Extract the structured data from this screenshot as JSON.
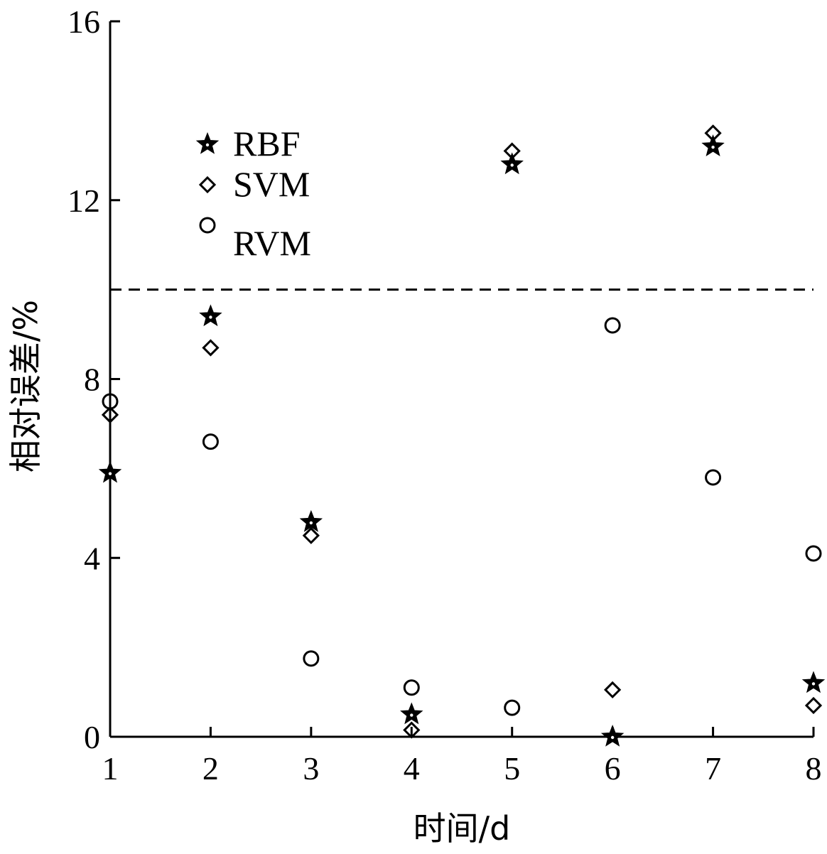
{
  "chart_data": {
    "type": "scatter",
    "title": "",
    "xlabel": "时间/d",
    "ylabel": "相对误差/%",
    "x": [
      1,
      2,
      3,
      4,
      5,
      6,
      7,
      8
    ],
    "xticks": [
      "1",
      "2",
      "3",
      "4",
      "5",
      "6",
      "7",
      "8"
    ],
    "yticks": [
      "0",
      "4",
      "8",
      "12",
      "16"
    ],
    "xlim": [
      1,
      8
    ],
    "ylim": [
      0,
      16
    ],
    "grid": false,
    "legend_position": "top-left",
    "reference_line": {
      "y": 10,
      "style": "dashed"
    },
    "series": [
      {
        "name": "RBF",
        "marker": "star",
        "values": [
          5.9,
          9.4,
          4.8,
          0.5,
          12.8,
          0.0,
          13.2,
          1.2
        ]
      },
      {
        "name": "SVM",
        "marker": "diamond",
        "values": [
          7.2,
          8.7,
          4.5,
          0.15,
          13.1,
          1.05,
          13.5,
          0.7
        ]
      },
      {
        "name": "RVM",
        "marker": "circle",
        "values": [
          7.5,
          6.6,
          1.75,
          1.1,
          0.65,
          9.2,
          5.8,
          4.1
        ]
      }
    ]
  }
}
